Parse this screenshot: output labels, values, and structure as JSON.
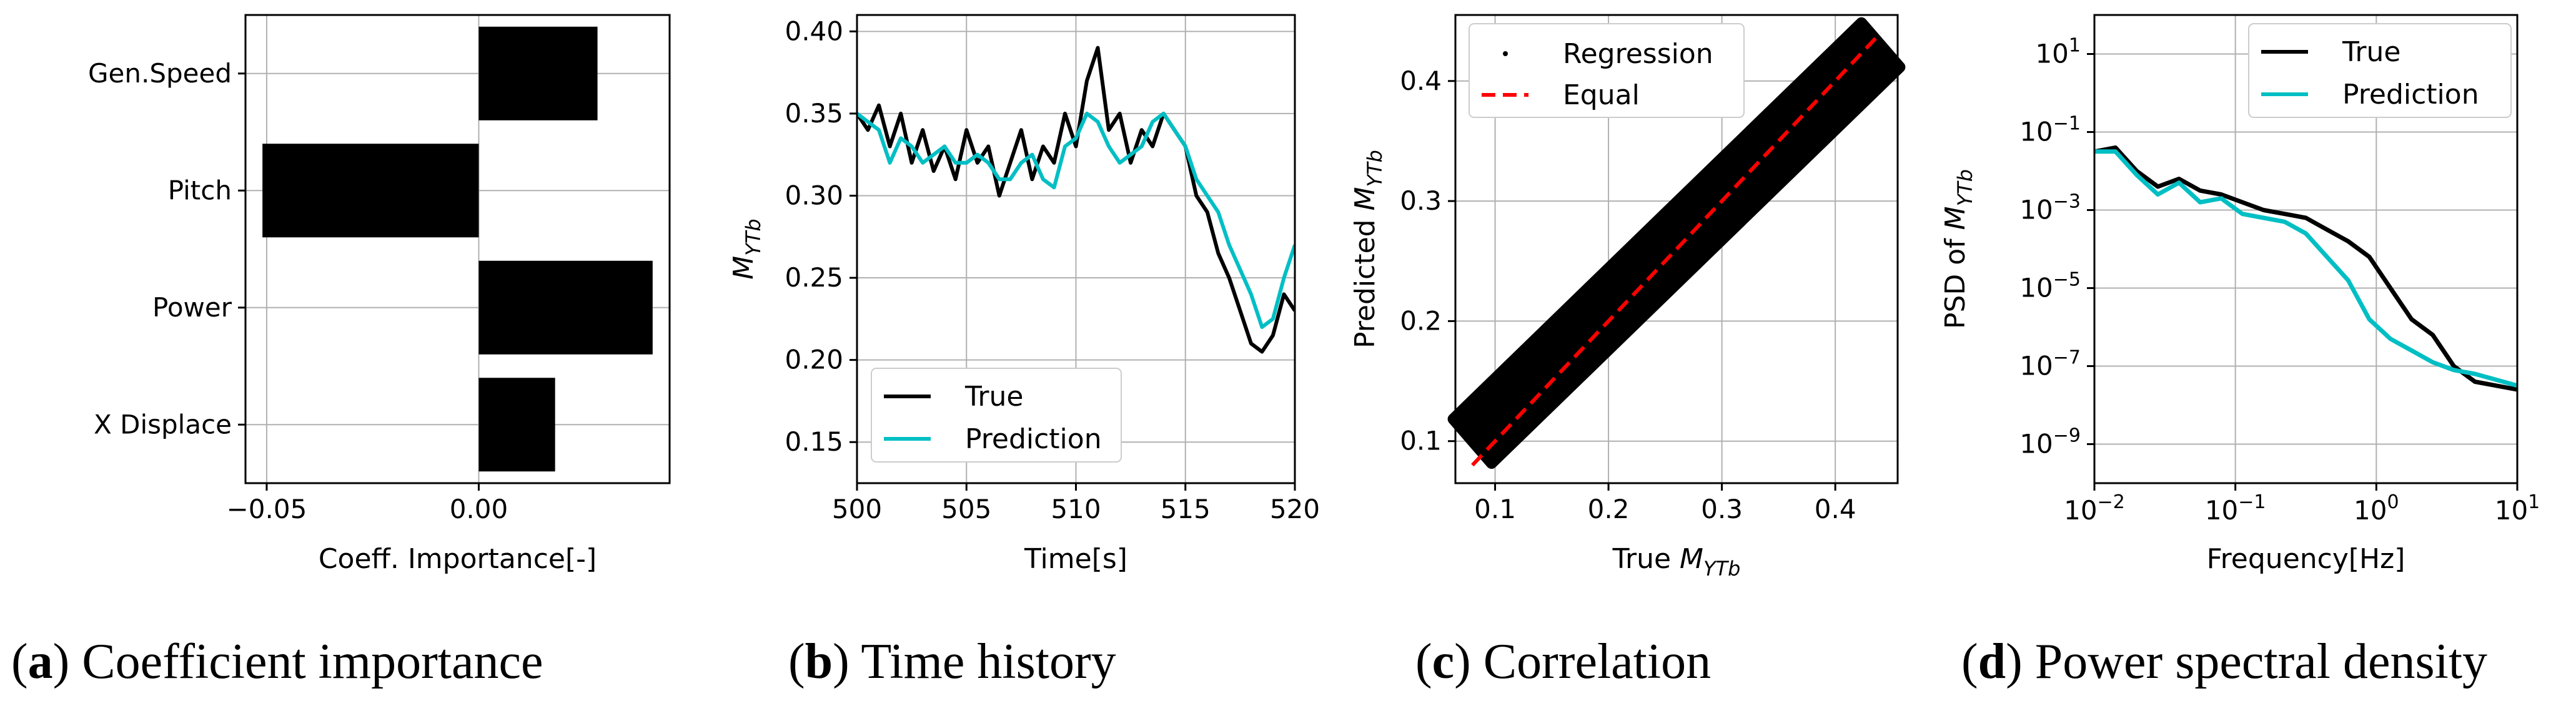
{
  "captions": [
    {
      "letter": "a",
      "text": "Coefficient importance"
    },
    {
      "letter": "b",
      "text": "Time history"
    },
    {
      "letter": "c",
      "text": "Correlation"
    },
    {
      "letter": "d",
      "text": "Power spectral density"
    }
  ],
  "chart_data": [
    {
      "id": "a",
      "type": "bar",
      "orientation": "horizontal",
      "categories": [
        "Gen.Speed",
        "Pitch",
        "Power",
        "X Displace"
      ],
      "values": [
        0.028,
        -0.051,
        0.041,
        0.018
      ],
      "xlabel": "Coeff. Importance[-]",
      "xlim": [
        -0.055,
        0.045
      ],
      "xticks": [
        -0.05,
        0.0
      ],
      "xtick_labels": [
        "-0.05",
        "0.00"
      ],
      "grid": true,
      "color": "#000000"
    },
    {
      "id": "b",
      "type": "line",
      "xlabel": "Time[s]",
      "ylabel": "M_YTb",
      "xlim": [
        500,
        520
      ],
      "ylim": [
        0.125,
        0.41
      ],
      "xticks": [
        500,
        505,
        510,
        515,
        520
      ],
      "yticks": [
        0.15,
        0.2,
        0.25,
        0.3,
        0.35,
        0.4
      ],
      "ytick_labels": [
        "0.15",
        "0.20",
        "0.25",
        "0.30",
        "0.35",
        "0.40"
      ],
      "legend": "lower-left",
      "grid": true,
      "series": [
        {
          "name": "True",
          "color": "#000000",
          "x": [
            500,
            500.5,
            501,
            501.5,
            502,
            502.5,
            503,
            503.5,
            504,
            504.5,
            505,
            505.5,
            506,
            506.5,
            507,
            507.5,
            508,
            508.5,
            509,
            509.5,
            510,
            510.5,
            511,
            511.5,
            512,
            512.5,
            513,
            513.5,
            514,
            514.5,
            515,
            515.5,
            516,
            516.5,
            517,
            517.5,
            518,
            518.5,
            519,
            519.5,
            520
          ],
          "y": [
            0.35,
            0.34,
            0.355,
            0.33,
            0.35,
            0.32,
            0.34,
            0.315,
            0.33,
            0.31,
            0.34,
            0.32,
            0.33,
            0.3,
            0.32,
            0.34,
            0.31,
            0.33,
            0.32,
            0.35,
            0.33,
            0.37,
            0.39,
            0.34,
            0.35,
            0.32,
            0.34,
            0.33,
            0.35,
            0.34,
            0.33,
            0.3,
            0.29,
            0.265,
            0.25,
            0.23,
            0.21,
            0.205,
            0.215,
            0.24,
            0.23
          ]
        },
        {
          "name": "Prediction",
          "color": "#00BFC4",
          "x": [
            500,
            500.5,
            501,
            501.5,
            502,
            502.5,
            503,
            503.5,
            504,
            504.5,
            505,
            505.5,
            506,
            506.5,
            507,
            507.5,
            508,
            508.5,
            509,
            509.5,
            510,
            510.5,
            511,
            511.5,
            512,
            512.5,
            513,
            513.5,
            514,
            514.5,
            515,
            515.5,
            516,
            516.5,
            517,
            517.5,
            518,
            518.5,
            519,
            519.5,
            520
          ],
          "y": [
            0.35,
            0.345,
            0.34,
            0.32,
            0.335,
            0.33,
            0.32,
            0.325,
            0.33,
            0.32,
            0.32,
            0.325,
            0.32,
            0.31,
            0.31,
            0.32,
            0.325,
            0.31,
            0.305,
            0.33,
            0.335,
            0.35,
            0.345,
            0.33,
            0.32,
            0.325,
            0.33,
            0.345,
            0.35,
            0.34,
            0.33,
            0.31,
            0.3,
            0.29,
            0.27,
            0.255,
            0.24,
            0.22,
            0.225,
            0.25,
            0.27
          ]
        }
      ]
    },
    {
      "id": "c",
      "type": "scatter",
      "xlabel": "True M_YTb",
      "ylabel": "Predicted M_YTb",
      "xlim": [
        0.065,
        0.455
      ],
      "ylim": [
        0.065,
        0.455
      ],
      "xticks": [
        0.1,
        0.2,
        0.3,
        0.4
      ],
      "yticks": [
        0.1,
        0.2,
        0.3,
        0.4
      ],
      "tick_labels": [
        "0.1",
        "0.2",
        "0.3",
        "0.4"
      ],
      "legend": "top-left",
      "grid": true,
      "series": [
        {
          "name": "Regression",
          "color": "#000000",
          "cloud_from": [
            0.08,
            0.1
          ],
          "cloud_to": [
            0.44,
            0.43
          ],
          "cloud_halfwidth": 0.025
        },
        {
          "name": "Equal",
          "color": "#FF0000",
          "x": [
            0.08,
            0.44
          ],
          "y": [
            0.08,
            0.44
          ],
          "style": "dashed"
        }
      ]
    },
    {
      "id": "d",
      "type": "line",
      "scale": "log-log",
      "xlabel": "Frequency[Hz]",
      "ylabel": "PSD of M_YTb",
      "xlim_exp": [
        -2,
        1
      ],
      "ylim_exp": [
        -10,
        2
      ],
      "xtick_exps": [
        -2,
        -1,
        0,
        1
      ],
      "ytick_exps": [
        -9,
        -7,
        -5,
        -3,
        -1,
        1
      ],
      "legend": "top-right",
      "grid": true,
      "series": [
        {
          "name": "True",
          "color": "#000000",
          "logx": [
            -2,
            -1.85,
            -1.7,
            -1.55,
            -1.4,
            -1.25,
            -1.1,
            -0.95,
            -0.8,
            -0.65,
            -0.5,
            -0.35,
            -0.2,
            -0.05,
            0.1,
            0.25,
            0.4,
            0.55,
            0.7,
            0.85,
            1
          ],
          "logy": [
            -1.5,
            -1.4,
            -2.0,
            -2.4,
            -2.2,
            -2.5,
            -2.6,
            -2.8,
            -3.0,
            -3.1,
            -3.2,
            -3.5,
            -3.8,
            -4.2,
            -5.0,
            -5.8,
            -6.2,
            -7.0,
            -7.4,
            -7.5,
            -7.6
          ]
        },
        {
          "name": "Prediction",
          "color": "#00BFC4",
          "logx": [
            -2,
            -1.85,
            -1.7,
            -1.55,
            -1.4,
            -1.25,
            -1.1,
            -0.95,
            -0.8,
            -0.65,
            -0.5,
            -0.35,
            -0.2,
            -0.05,
            0.1,
            0.25,
            0.4,
            0.55,
            0.7,
            0.85,
            1
          ],
          "logy": [
            -1.5,
            -1.5,
            -2.1,
            -2.6,
            -2.3,
            -2.8,
            -2.7,
            -3.1,
            -3.2,
            -3.3,
            -3.6,
            -4.2,
            -4.8,
            -5.8,
            -6.3,
            -6.6,
            -6.9,
            -7.1,
            -7.2,
            -7.35,
            -7.5
          ]
        }
      ]
    }
  ]
}
